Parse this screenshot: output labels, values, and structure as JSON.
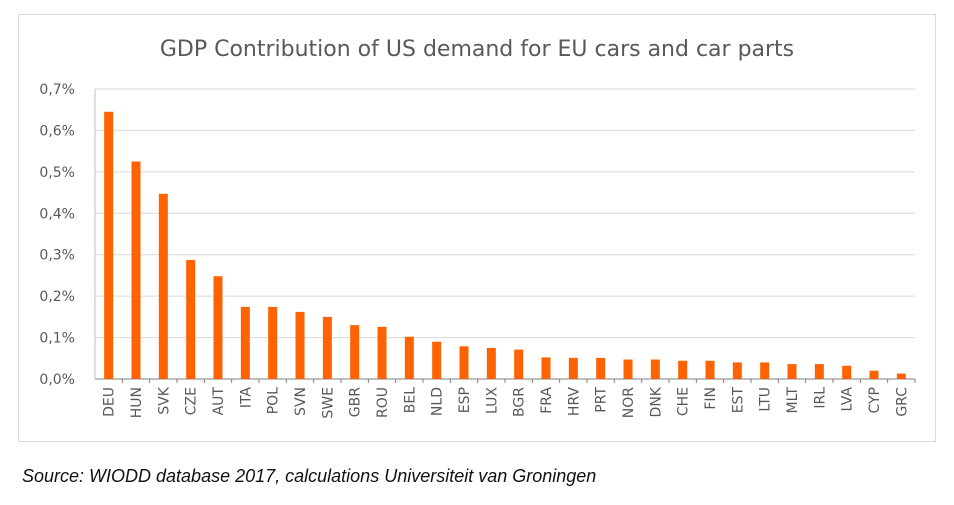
{
  "chart_data": {
    "type": "bar",
    "title": "GDP Contribution of  US demand for EU cars and car parts",
    "xlabel": "",
    "ylabel": "",
    "ylim": [
      0,
      0.7
    ],
    "yticks": [
      "0,0%",
      "0,1%",
      "0,2%",
      "0,3%",
      "0,4%",
      "0,5%",
      "0,6%",
      "0,7%"
    ],
    "grid": true,
    "legend": "none",
    "bar_color": "#ff6200",
    "categories": [
      "DEU",
      "HUN",
      "SVK",
      "CZE",
      "AUT",
      "ITA",
      "POL",
      "SVN",
      "SWE",
      "GBR",
      "ROU",
      "BEL",
      "NLD",
      "ESP",
      "LUX",
      "BGR",
      "FRA",
      "HRV",
      "PRT",
      "NOR",
      "DNK",
      "CHE",
      "FIN",
      "EST",
      "LTU",
      "MLT",
      "IRL",
      "LVA",
      "CYP",
      "GRC"
    ],
    "values": [
      0.645,
      0.525,
      0.447,
      0.287,
      0.248,
      0.174,
      0.174,
      0.162,
      0.15,
      0.13,
      0.126,
      0.102,
      0.09,
      0.079,
      0.075,
      0.071,
      0.052,
      0.051,
      0.051,
      0.047,
      0.047,
      0.044,
      0.044,
      0.04,
      0.04,
      0.036,
      0.036,
      0.032,
      0.02,
      0.013
    ]
  },
  "source": "Source: WIODD database 2017, calculations Universiteit van Groningen"
}
